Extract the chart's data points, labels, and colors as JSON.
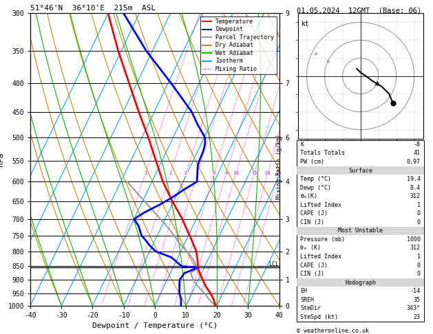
{
  "title_left": "51°46'N  36°10'E  215m  ASL",
  "title_right": "01.05.2024  12GMT  (Base: 06)",
  "xlabel": "Dewpoint / Temperature (°C)",
  "ylabel_left": "hPa",
  "pressure_levels": [
    300,
    350,
    400,
    450,
    500,
    550,
    600,
    650,
    700,
    750,
    800,
    850,
    900,
    950,
    1000
  ],
  "temp_xlim": [
    -40,
    40
  ],
  "skew_factor": 45,
  "colors": {
    "temperature": "#ff0000",
    "dewpoint": "#0000ff",
    "parcel": "#999999",
    "dry_adiabat": "#cc8800",
    "wet_adiabat": "#00bb00",
    "isotherm": "#00aaff",
    "mixing_ratio": "#ff00cc",
    "background": "#ffffff",
    "grid": "#000000"
  },
  "temp_profile": {
    "pressure": [
      1000,
      975,
      950,
      925,
      900,
      875,
      855,
      850,
      825,
      800,
      775,
      750,
      725,
      700,
      650,
      600,
      550,
      500,
      450,
      400,
      350,
      300
    ],
    "temp": [
      19.4,
      18.0,
      16.0,
      13.5,
      11.5,
      9.5,
      8.0,
      7.8,
      6.5,
      5.0,
      2.8,
      0.5,
      -2.0,
      -4.5,
      -10.5,
      -16.5,
      -22.0,
      -28.0,
      -35.0,
      -42.5,
      -51.0,
      -60.0
    ]
  },
  "dewp_profile": {
    "pressure": [
      1000,
      975,
      950,
      925,
      900,
      875,
      855,
      850,
      820,
      800,
      780,
      760,
      750,
      720,
      700,
      680,
      660,
      640,
      620,
      600,
      575,
      560,
      550,
      530,
      520,
      510,
      500,
      475,
      450,
      400,
      350,
      300
    ],
    "dewp": [
      8.4,
      7.5,
      6.0,
      5.0,
      4.0,
      4.5,
      8.0,
      2.5,
      -2.0,
      -8.0,
      -11.0,
      -13.5,
      -15.0,
      -17.5,
      -20.0,
      -17.5,
      -14.0,
      -11.0,
      -8.5,
      -5.5,
      -7.0,
      -7.8,
      -8.0,
      -8.2,
      -8.5,
      -9.0,
      -9.8,
      -14.0,
      -18.0,
      -29.0,
      -42.0,
      -55.0
    ]
  },
  "parcel_profile": {
    "pressure": [
      1000,
      975,
      950,
      925,
      900,
      875,
      855,
      850,
      825,
      800,
      775,
      750,
      725,
      700,
      650,
      600
    ],
    "temp": [
      19.4,
      16.5,
      14.0,
      11.0,
      8.5,
      6.5,
      8.0,
      7.2,
      5.0,
      2.0,
      -1.5,
      -4.5,
      -7.8,
      -11.5,
      -19.5,
      -28.0
    ]
  },
  "lcl_pressure": 855,
  "mixing_ratio_values": [
    1,
    2,
    3,
    4,
    6,
    8,
    10,
    15,
    20,
    25
  ],
  "km_pressures": [
    1000,
    900,
    800,
    700,
    600,
    500,
    400,
    300
  ],
  "km_altitudes": [
    0,
    1,
    2,
    3,
    4,
    6,
    7,
    9
  ],
  "stats": {
    "K": "-8",
    "Totals Totals": "41",
    "PW (cm)": "0.97",
    "Temp (C)": "19.4",
    "Dewp (C)": "8.4",
    "theta_e": "312",
    "Lifted Index": "1",
    "CAPE": "0",
    "CIN": "0",
    "MU_Pressure": "1000",
    "MU_theta_e": "312",
    "MU_LI": "1",
    "MU_CAPE": "0",
    "MU_CIN": "0",
    "EH": "-14",
    "SREH": "35",
    "StmDir": "343",
    "StmSpd": "23"
  },
  "copyright": "© weatheronline.co.uk"
}
